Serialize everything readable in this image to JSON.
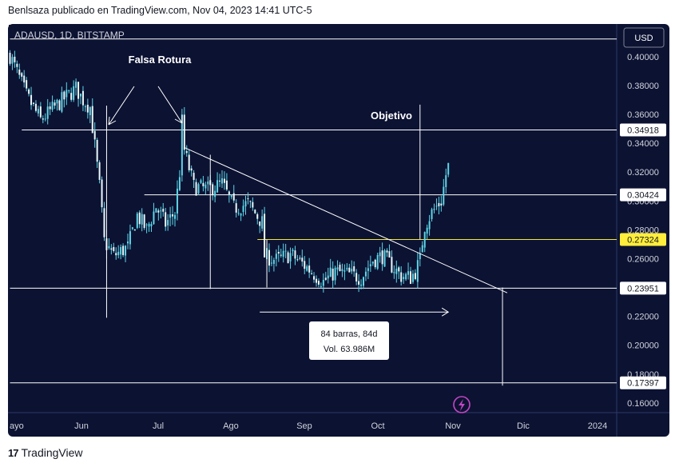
{
  "caption": "Benlsaza publicado en TradingView.com, Nov 04, 2023 14:41 UTC-5",
  "symbol": "ADAUSD, 1D, BITSTAMP",
  "currency_button": "USD",
  "brand": "TradingView",
  "colors": {
    "background": "#0c1232",
    "candle": "#5ed6e8",
    "line": "#ffffff",
    "highlight_line": "#f5e63b",
    "highlight_label_bg": "#ffee3b",
    "label_bg": "#ffffff",
    "icon": "#c246c4"
  },
  "chart_data": {
    "type": "candlestick",
    "title": "ADAUSD, 1D, BITSTAMP",
    "x_ticks": [
      "ayo",
      "Jun",
      "Jul",
      "Ago",
      "Sep",
      "Oct",
      "Nov",
      "Dic",
      "2024"
    ],
    "y_ticks": [
      "0.40000",
      "0.38000",
      "0.36000",
      "0.34000",
      "0.32000",
      "0.30000",
      "0.28000",
      "0.26000",
      "0.22000",
      "0.20000",
      "0.18000",
      "0.16000"
    ],
    "ylim": [
      0.1533,
      0.4226
    ],
    "series": [
      {
        "kind": "close_path",
        "points": [
          [
            "2023-05-01",
            0.401
          ],
          [
            "2023-05-08",
            0.373
          ],
          [
            "2023-05-14",
            0.356
          ],
          [
            "2023-05-22",
            0.368
          ],
          [
            "2023-05-29",
            0.378
          ],
          [
            "2023-06-01",
            0.37
          ],
          [
            "2023-06-04",
            0.365
          ],
          [
            "2023-06-06",
            0.338
          ],
          [
            "2023-06-08",
            0.31
          ],
          [
            "2023-06-10",
            0.272
          ],
          [
            "2023-06-14",
            0.262
          ],
          [
            "2023-06-20",
            0.268
          ],
          [
            "2023-06-24",
            0.29
          ],
          [
            "2023-06-28",
            0.28
          ],
          [
            "2023-07-02",
            0.296
          ],
          [
            "2023-07-06",
            0.284
          ],
          [
            "2023-07-10",
            0.292
          ],
          [
            "2023-07-12",
            0.32
          ],
          [
            "2023-07-13",
            0.355
          ],
          [
            "2023-07-14",
            0.335
          ],
          [
            "2023-07-18",
            0.31
          ],
          [
            "2023-07-24",
            0.308
          ],
          [
            "2023-07-30",
            0.312
          ],
          [
            "2023-08-04",
            0.295
          ],
          [
            "2023-08-10",
            0.298
          ],
          [
            "2023-08-16",
            0.285
          ],
          [
            "2023-08-17",
            0.262
          ],
          [
            "2023-08-22",
            0.259
          ],
          [
            "2023-08-28",
            0.263
          ],
          [
            "2023-09-01",
            0.258
          ],
          [
            "2023-09-06",
            0.251
          ],
          [
            "2023-09-11",
            0.244
          ],
          [
            "2023-09-16",
            0.251
          ],
          [
            "2023-09-22",
            0.249
          ],
          [
            "2023-09-27",
            0.247
          ],
          [
            "2023-10-02",
            0.259
          ],
          [
            "2023-10-06",
            0.262
          ],
          [
            "2023-10-10",
            0.255
          ],
          [
            "2023-10-14",
            0.248
          ],
          [
            "2023-10-18",
            0.247
          ],
          [
            "2023-10-20",
            0.251
          ],
          [
            "2023-10-22",
            0.259
          ],
          [
            "2023-10-23",
            0.272
          ],
          [
            "2023-10-24",
            0.283
          ],
          [
            "2023-10-27",
            0.292
          ],
          [
            "2023-10-31",
            0.3
          ],
          [
            "2023-11-02",
            0.318
          ],
          [
            "2023-11-03",
            0.324
          ]
        ]
      }
    ],
    "horizontal_levels": [
      {
        "label": "",
        "value": 0.4122,
        "start": "2023-05-01"
      },
      {
        "label": "0.34918",
        "value": 0.34918,
        "start": "2023-05-06"
      },
      {
        "label": "0.30424",
        "value": 0.30424,
        "start": "2023-06-27"
      },
      {
        "label": "0.27324",
        "value": 0.27324,
        "start": "2023-08-14",
        "highlight": true
      },
      {
        "label": "0.23951",
        "value": 0.23951,
        "start": "2023-05-01"
      },
      {
        "label": "0.17397",
        "value": 0.17397,
        "start": "2023-05-01"
      }
    ],
    "trendline": {
      "from": [
        "2023-07-14",
        0.337
      ],
      "to": [
        "2023-11-28",
        0.2363
      ]
    },
    "verticals": [
      {
        "date": "2023-06-11",
        "from": 0.366,
        "to": 0.219
      },
      {
        "date": "2023-07-25",
        "from": 0.332,
        "to": 0.239
      },
      {
        "date": "2023-08-18",
        "from": 0.273,
        "to": 0.24
      },
      {
        "date": "2023-10-22",
        "from": 0.3667,
        "to": 0.2735
      },
      {
        "date": "2023-11-26",
        "from": 0.24,
        "to": 0.172
      }
    ],
    "annotations": {
      "falsa_rotura": "Falsa Rotura",
      "objetivo": "Objetivo",
      "range_bars": "84 barras, 84d",
      "range_vol": "Vol. 63.986M"
    },
    "range_arrow": {
      "from": "2023-08-15",
      "to": "2023-11-03",
      "value": 0.223
    },
    "grid": false
  }
}
